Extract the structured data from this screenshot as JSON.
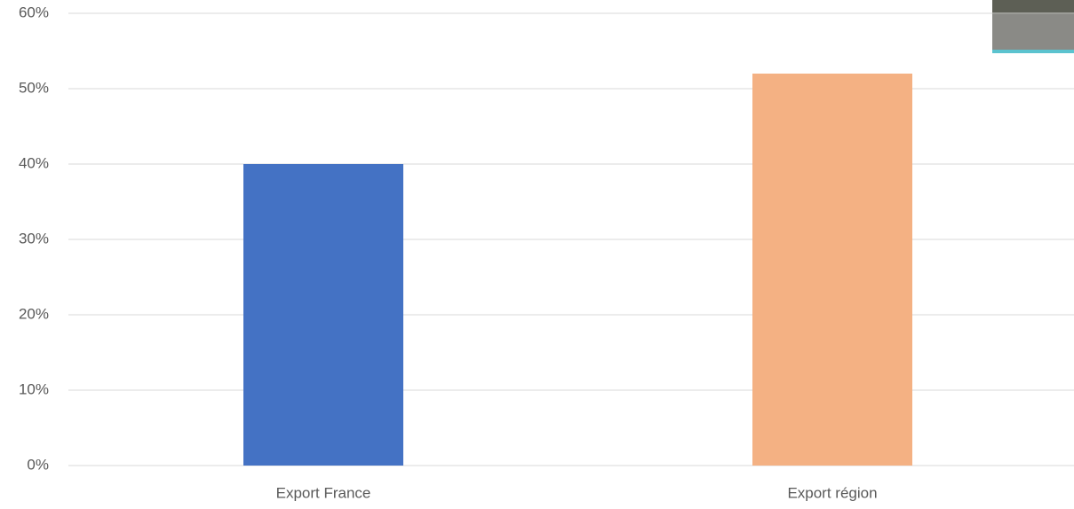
{
  "chart_data": {
    "type": "bar",
    "categories": [
      "Export France",
      "Export région"
    ],
    "values": [
      40,
      52
    ],
    "colors": [
      "#4472c4",
      "#f4b183"
    ],
    "ylim": [
      0,
      60
    ],
    "yticks": [
      {
        "value": 0,
        "label": "0%"
      },
      {
        "value": 10,
        "label": "10%"
      },
      {
        "value": 20,
        "label": "20%"
      },
      {
        "value": 30,
        "label": "30%"
      },
      {
        "value": 40,
        "label": "40%"
      },
      {
        "value": 50,
        "label": "50%"
      },
      {
        "value": 60,
        "label": "60%"
      }
    ],
    "grid": true
  }
}
